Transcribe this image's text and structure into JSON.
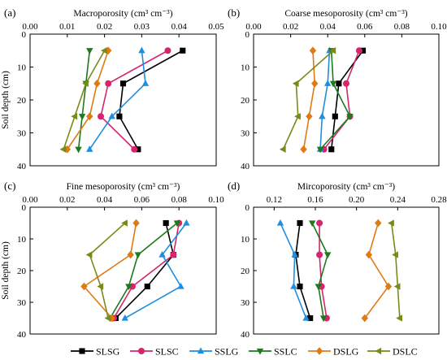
{
  "y_axis_title": "Soil depth (cm)",
  "series_styles": [
    {
      "name": "SLSG",
      "color": "#000000",
      "marker": "square"
    },
    {
      "name": "SLSC",
      "color": "#d6246e",
      "marker": "circle"
    },
    {
      "name": "SSLG",
      "color": "#1e8fe0",
      "marker": "triangle-up"
    },
    {
      "name": "SSLC",
      "color": "#1d7a1d",
      "marker": "triangle-down"
    },
    {
      "name": "DSLG",
      "color": "#e07b12",
      "marker": "diamond"
    },
    {
      "name": "DSLC",
      "color": "#7a8a1a",
      "marker": "triangle-left"
    }
  ],
  "chart_data": [
    {
      "type": "line",
      "panel_label": "(a)",
      "title": "Macroporosity (cm³ cm⁻³)",
      "ylabel": "Soil depth (cm)",
      "xlim": [
        0,
        0.05
      ],
      "xticks": [
        "0.00",
        "0.01",
        "0.02",
        "0.03",
        "0.04",
        "0.05"
      ],
      "ylim": [
        0,
        40
      ],
      "yticks": [
        "0",
        "10",
        "20",
        "30",
        "40"
      ],
      "depths": [
        5,
        15,
        25,
        35
      ],
      "series": [
        {
          "name": "SLSG",
          "values": [
            0.041,
            0.025,
            0.024,
            0.029
          ]
        },
        {
          "name": "SLSC",
          "values": [
            0.037,
            0.021,
            0.019,
            0.028
          ]
        },
        {
          "name": "SSLG",
          "values": [
            0.03,
            0.031,
            0.022,
            0.016
          ]
        },
        {
          "name": "SSLC",
          "values": [
            0.016,
            0.015,
            0.014,
            0.013
          ]
        },
        {
          "name": "DSLG",
          "values": [
            0.021,
            0.018,
            0.016,
            0.01
          ]
        },
        {
          "name": "DSLC",
          "values": [
            0.02,
            0.015,
            0.012,
            0.009
          ]
        }
      ]
    },
    {
      "type": "line",
      "panel_label": "(b)",
      "title": "Coarse mesoporosity (cm³ cm⁻³)",
      "ylabel": "",
      "xlim": [
        0,
        0.1
      ],
      "xticks": [
        "0.00",
        "0.02",
        "0.04",
        "0.06",
        "0.08",
        "0.10"
      ],
      "ylim": [
        0,
        40
      ],
      "yticks": [
        "0",
        "10",
        "20",
        "30",
        "40"
      ],
      "depths": [
        5,
        15,
        25,
        35
      ],
      "series": [
        {
          "name": "SLSG",
          "values": [
            0.059,
            0.046,
            0.044,
            0.042
          ]
        },
        {
          "name": "SLSC",
          "values": [
            0.057,
            0.05,
            0.052,
            0.038
          ]
        },
        {
          "name": "SSLG",
          "values": [
            0.041,
            0.04,
            0.037,
            0.036
          ]
        },
        {
          "name": "SSLC",
          "values": [
            0.042,
            0.043,
            0.052,
            0.036
          ]
        },
        {
          "name": "DSLG",
          "values": [
            0.032,
            0.033,
            0.03,
            0.027
          ]
        },
        {
          "name": "DSLC",
          "values": [
            0.043,
            0.023,
            0.024,
            0.016
          ]
        }
      ]
    },
    {
      "type": "line",
      "panel_label": "(c)",
      "title": "Fine mesoporosity (cm³ cm⁻³)",
      "ylabel": "Soil depth (cm)",
      "xlim": [
        0,
        0.1
      ],
      "xticks": [
        "0.00",
        "0.02",
        "0.04",
        "0.06",
        "0.08",
        "0.10"
      ],
      "ylim": [
        0,
        40
      ],
      "yticks": [
        "0",
        "10",
        "20",
        "30",
        "40"
      ],
      "depths": [
        5,
        15,
        25,
        35
      ],
      "series": [
        {
          "name": "SLSG",
          "values": [
            0.073,
            0.077,
            0.063,
            0.046
          ]
        },
        {
          "name": "SLSC",
          "values": [
            0.08,
            0.077,
            0.055,
            0.045
          ]
        },
        {
          "name": "SSLG",
          "values": [
            0.084,
            0.071,
            0.081,
            0.051
          ]
        },
        {
          "name": "SSLC",
          "values": [
            0.079,
            0.058,
            0.053,
            0.043
          ]
        },
        {
          "name": "DSLG",
          "values": [
            0.057,
            0.054,
            0.029,
            0.044
          ]
        },
        {
          "name": "DSLC",
          "values": [
            0.051,
            0.032,
            0.038,
            0.042
          ]
        }
      ]
    },
    {
      "type": "line",
      "panel_label": "(d)",
      "title": "Mircoporosity (cm³ cm⁻³)",
      "ylabel": "",
      "xlim": [
        0.1,
        0.28
      ],
      "xticks": [
        "0.12",
        "0.16",
        "0.20",
        "0.24",
        "0.28"
      ],
      "ylim": [
        0,
        40
      ],
      "yticks": [
        "0",
        "10",
        "20",
        "30",
        "40"
      ],
      "depths": [
        5,
        15,
        25,
        35
      ],
      "series": [
        {
          "name": "SLSG",
          "values": [
            0.145,
            0.141,
            0.145,
            0.155
          ]
        },
        {
          "name": "SLSC",
          "values": [
            0.164,
            0.164,
            0.166,
            0.171
          ]
        },
        {
          "name": "SSLG",
          "values": [
            0.126,
            0.14,
            0.139,
            0.151
          ]
        },
        {
          "name": "SSLC",
          "values": [
            0.157,
            0.172,
            0.163,
            0.168
          ]
        },
        {
          "name": "DSLG",
          "values": [
            0.221,
            0.212,
            0.231,
            0.208
          ]
        },
        {
          "name": "DSLC",
          "values": [
            0.234,
            0.238,
            0.24,
            0.242
          ]
        }
      ]
    }
  ]
}
